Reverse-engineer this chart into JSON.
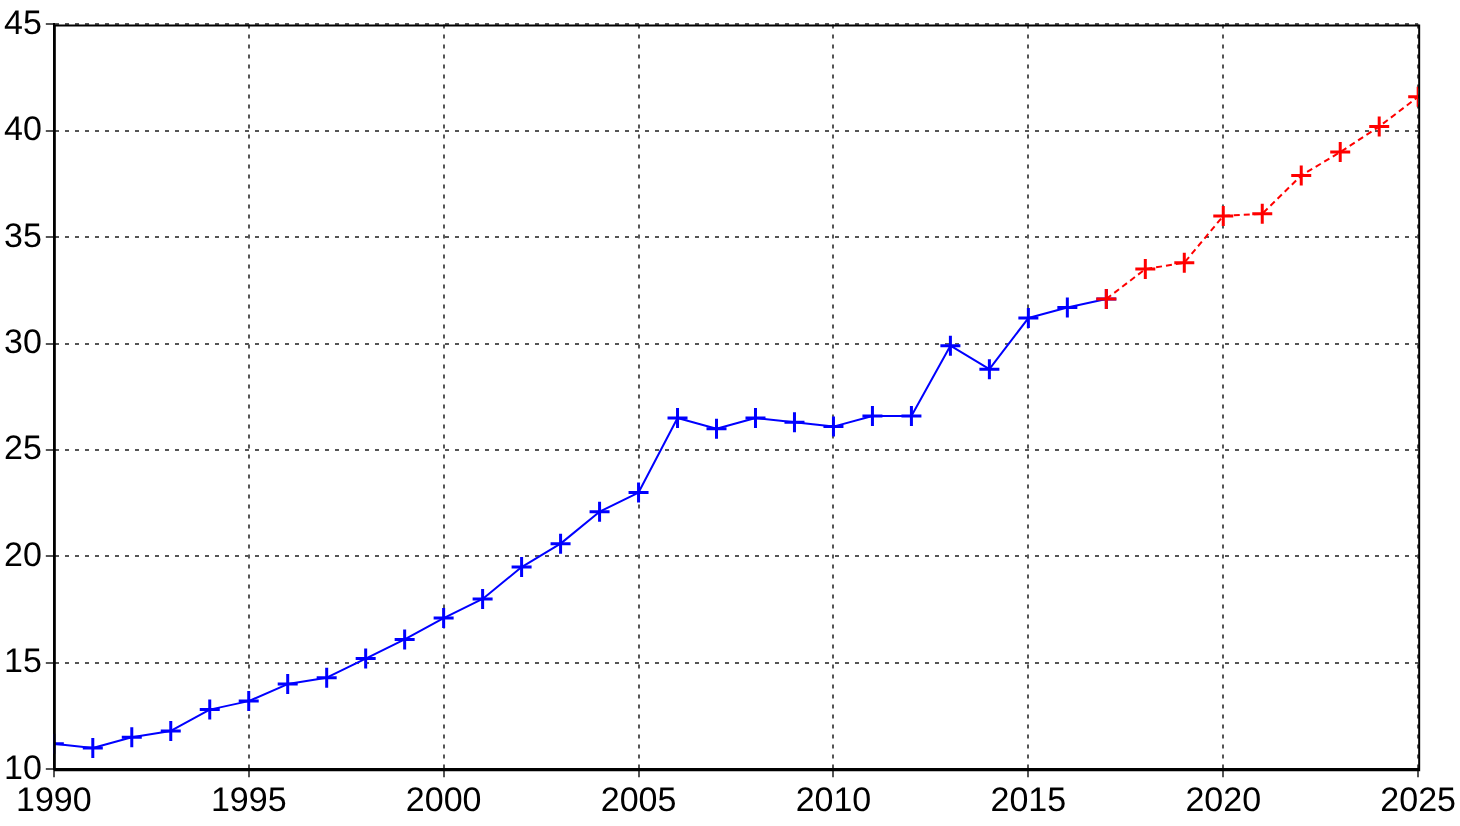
{
  "chart_data": {
    "type": "line",
    "xlim": [
      1990,
      2025
    ],
    "xticks": [
      1990,
      1995,
      2000,
      2005,
      2010,
      2015,
      2020,
      2025
    ],
    "ylim": [
      10,
      45
    ],
    "yticks": [
      10,
      15,
      20,
      25,
      30,
      35,
      40,
      45
    ],
    "grid": true,
    "legend": false,
    "series": [
      {
        "color": "#0000ff",
        "marker": "cross",
        "line_style": "solid",
        "x": [
          1990,
          1991,
          1992,
          1993,
          1994,
          1995,
          1996,
          1997,
          1998,
          1999,
          2000,
          2001,
          2002,
          2003,
          2004,
          2005,
          2006,
          2007,
          2008,
          2009,
          2010,
          2011,
          2012,
          2013,
          2014,
          2015,
          2016,
          2017
        ],
        "values": [
          11.2,
          11.0,
          11.5,
          11.8,
          12.8,
          13.2,
          14.0,
          14.3,
          15.2,
          16.1,
          17.1,
          18.0,
          19.5,
          20.6,
          22.1,
          23.0,
          26.5,
          26.0,
          26.5,
          26.3,
          26.1,
          26.6,
          26.6,
          29.9,
          28.8,
          31.2,
          31.7,
          32.1
        ]
      },
      {
        "color": "#ff0000",
        "marker": "cross",
        "line_style": "dashed",
        "x": [
          2017,
          2018,
          2019,
          2020,
          2021,
          2022,
          2023,
          2024,
          2025
        ],
        "values": [
          32.1,
          33.5,
          33.8,
          36.0,
          36.1,
          37.9,
          39.0,
          40.2,
          41.6
        ]
      }
    ]
  }
}
